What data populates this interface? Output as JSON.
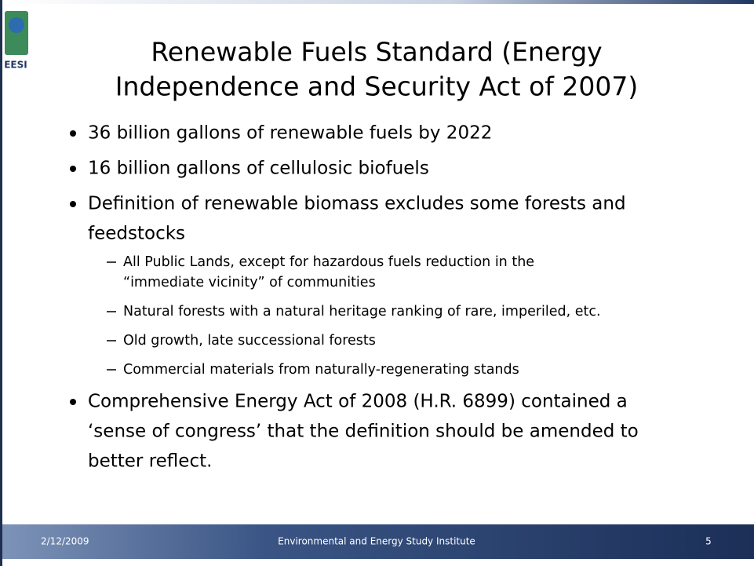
{
  "logo": {
    "label": "EESI"
  },
  "header": {
    "title_lines": [
      "Renewable Fuels Standard (Energy",
      "Independence and Security Act of 2007)"
    ]
  },
  "bullets": [
    {
      "lines": [
        "36 billion gallons of renewable fuels by 2022"
      ]
    },
    {
      "lines": [
        "16 billion gallons of cellulosic biofuels"
      ]
    },
    {
      "lines": [
        "Definition of renewable biomass excludes some forests and",
        "feedstocks"
      ],
      "sub": [
        {
          "lines": [
            "All Public Lands, except for hazardous fuels reduction in the",
            "“immediate vicinity” of communities"
          ]
        },
        {
          "lines": [
            "Natural forests with a natural heritage ranking of rare, imperiled, etc."
          ]
        },
        {
          "lines": [
            "Old growth, late successional forests"
          ]
        },
        {
          "lines": [
            "Commercial materials from naturally-regenerating stands"
          ]
        }
      ]
    },
    {
      "lines": [
        "Comprehensive Energy Act of 2008 (H.R. 6899) contained a",
        "‘sense of congress’ that the definition should be amended to",
        "better reflect."
      ]
    }
  ],
  "footer": {
    "date": "2/12/2009",
    "organization": "Environmental and Energy Study Institute",
    "page_number": "5"
  }
}
